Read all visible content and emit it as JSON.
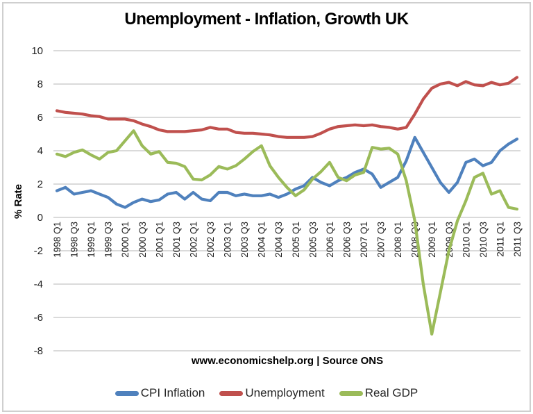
{
  "page": {
    "title": "Unemployment - Inflation, Growth UK",
    "source_note": "www.economicshelp.org | Source ONS"
  },
  "colors": {
    "gridline": "#c3c3c3",
    "tick_text": "#1f1f1f",
    "title_text": "#000000",
    "cpi_blue": "#4F81BD",
    "unemployment_red": "#C0504D",
    "gdp_green": "#9BBB59"
  },
  "chart_data": {
    "type": "line",
    "title": "Unemployment - Inflation, Growth UK",
    "xlabel": "",
    "ylabel": "% Rate",
    "ylim": [
      -8,
      10
    ],
    "ytick_step": 2,
    "ytick_labels": [
      10,
      8,
      6,
      4,
      2,
      0,
      -2,
      -4,
      -6,
      -8
    ],
    "grid": true,
    "legend_position": "bottom",
    "x_tick_every": 2,
    "x_tick_rotation": -90,
    "source_note": "www.economicshelp.org | Source ONS",
    "categories": [
      "1998 Q1",
      "1998 Q2",
      "1998 Q3",
      "1998 Q4",
      "1999 Q1",
      "1999 Q2",
      "1999 Q3",
      "1999 Q4",
      "2000 Q1",
      "2000 Q2",
      "2000 Q3",
      "2000 Q4",
      "2001 Q1",
      "2001 Q2",
      "2001 Q3",
      "2001 Q4",
      "2002 Q1",
      "2002 Q2",
      "2002 Q3",
      "2002 Q4",
      "2003 Q1",
      "2003 Q2",
      "2003 Q3",
      "2003 Q4",
      "2004 Q1",
      "2004 Q2",
      "2004 Q3",
      "2004 Q4",
      "2005 Q1",
      "2005 Q2",
      "2005 Q3",
      "2005 Q4",
      "2006 Q1",
      "2006 Q2",
      "2006 Q3",
      "2006 Q4",
      "2007 Q1",
      "2007 Q2",
      "2007 Q3",
      "2007 Q4",
      "2008 Q1",
      "2008 Q2",
      "2008 Q3",
      "2008 Q4",
      "2009 Q1",
      "2009 Q2",
      "2009 Q3",
      "2009 Q4",
      "2010 Q1",
      "2010 Q2",
      "2010 Q3",
      "2010 Q4",
      "2011 Q1",
      "2011 Q2",
      "2011 Q3"
    ],
    "series": [
      {
        "name": "CPI Inflation",
        "color": "#4F81BD",
        "values": [
          1.6,
          1.8,
          1.4,
          1.5,
          1.6,
          1.4,
          1.2,
          0.8,
          0.6,
          0.9,
          1.1,
          0.95,
          1.05,
          1.4,
          1.5,
          1.1,
          1.5,
          1.1,
          1.0,
          1.5,
          1.5,
          1.3,
          1.4,
          1.3,
          1.3,
          1.4,
          1.2,
          1.4,
          1.7,
          1.9,
          2.4,
          2.1,
          1.9,
          2.2,
          2.4,
          2.7,
          2.9,
          2.6,
          1.8,
          2.1,
          2.4,
          3.4,
          4.8,
          3.9,
          3.0,
          2.1,
          1.5,
          2.1,
          3.3,
          3.5,
          3.1,
          3.3,
          4.0,
          4.4,
          4.7
        ]
      },
      {
        "name": "Unemployment",
        "color": "#C0504D",
        "values": [
          6.4,
          6.3,
          6.25,
          6.2,
          6.1,
          6.05,
          5.9,
          5.9,
          5.9,
          5.8,
          5.6,
          5.45,
          5.25,
          5.15,
          5.15,
          5.15,
          5.2,
          5.25,
          5.4,
          5.3,
          5.3,
          5.1,
          5.05,
          5.05,
          5.0,
          4.95,
          4.85,
          4.8,
          4.8,
          4.8,
          4.85,
          5.05,
          5.3,
          5.45,
          5.5,
          5.55,
          5.5,
          5.55,
          5.45,
          5.4,
          5.3,
          5.4,
          6.2,
          7.1,
          7.75,
          8.0,
          8.1,
          7.9,
          8.15,
          7.95,
          7.9,
          8.1,
          7.95,
          8.05,
          8.4
        ]
      },
      {
        "name": "Real GDP",
        "color": "#9BBB59",
        "values": [
          3.8,
          3.65,
          3.9,
          4.05,
          3.75,
          3.5,
          3.9,
          4.0,
          4.6,
          5.2,
          4.3,
          3.8,
          3.95,
          3.3,
          3.25,
          3.05,
          2.3,
          2.25,
          2.55,
          3.05,
          2.9,
          3.1,
          3.5,
          3.95,
          4.3,
          3.1,
          2.4,
          1.8,
          1.3,
          1.65,
          2.3,
          2.75,
          3.3,
          2.4,
          2.2,
          2.55,
          2.7,
          4.2,
          4.1,
          4.15,
          3.8,
          2.2,
          -0.2,
          -4.0,
          -7.0,
          -4.5,
          -2.0,
          -0.2,
          1.0,
          2.4,
          2.65,
          1.4,
          1.6,
          0.6,
          0.5
        ]
      }
    ]
  }
}
